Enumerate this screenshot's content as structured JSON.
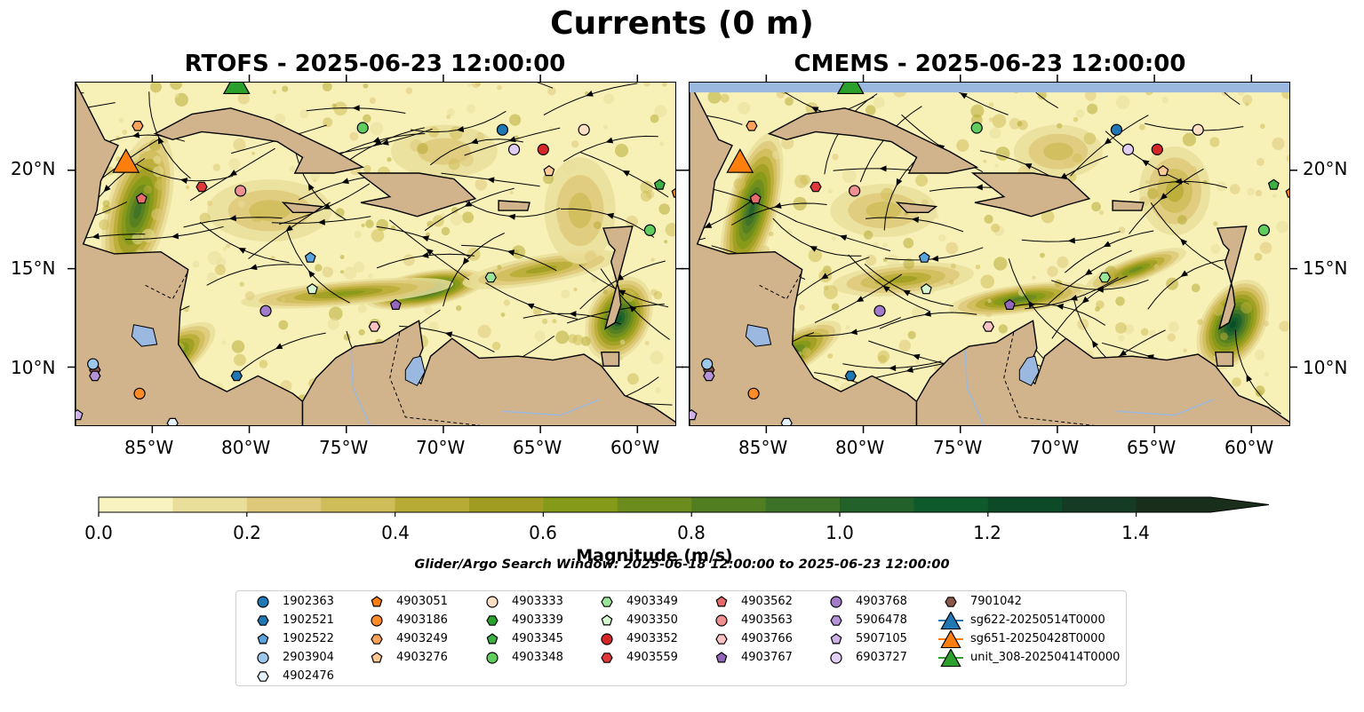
{
  "title": "Currents (0 m)",
  "panels": [
    {
      "id": "rtofs",
      "title": "RTOFS - 2025-06-23 12:00:00"
    },
    {
      "id": "cmems",
      "title": "CMEMS - 2025-06-23 12:00:00"
    }
  ],
  "map": {
    "lon_range": [
      -89,
      -58
    ],
    "lat_range": [
      7,
      24.5
    ],
    "lon_ticks": [
      "85°W",
      "80°W",
      "75°W",
      "70°W",
      "65°W",
      "60°W"
    ],
    "lat_ticks": [
      "20°N",
      "15°N",
      "10°N"
    ],
    "colors": {
      "land": "#d2b48c",
      "water": "#9bb9e0",
      "low": "#f7f1b8",
      "high": "#0d3b1c"
    }
  },
  "colorbar": {
    "label": "Magnitude (m/s)",
    "ticks": [
      "0.0",
      "0.2",
      "0.4",
      "0.6",
      "0.8",
      "1.0",
      "1.2",
      "1.4"
    ],
    "range": [
      0,
      1.5
    ],
    "extend": "max",
    "colors": [
      "#f8f3c0",
      "#eadf9a",
      "#dec97a",
      "#cfbd5a",
      "#b8ab35",
      "#a09c22",
      "#849a18",
      "#6c8c1e",
      "#527e22",
      "#3c7228",
      "#22622a",
      "#0f5a2c",
      "#0c4a28",
      "#163b24",
      "#1a2e1c"
    ]
  },
  "search_window": "Glider/Argo Search Window: 2025-06-18 12:00:00 to 2025-06-23 12:00:00",
  "legend": [
    {
      "label": "1902363",
      "marker": "circle",
      "color": "#1f77b4"
    },
    {
      "label": "1902521",
      "marker": "hexagon",
      "color": "#1f77b4"
    },
    {
      "label": "1902522",
      "marker": "pentagon",
      "color": "#5ba3dd"
    },
    {
      "label": "2903904",
      "marker": "circle",
      "color": "#9dc8ec"
    },
    {
      "label": "4902476",
      "marker": "hexagon",
      "color": "#e6f2fb"
    },
    {
      "label": "4903051",
      "marker": "pentagon",
      "color": "#ff7f0e"
    },
    {
      "label": "4903186",
      "marker": "circle",
      "color": "#ff8c26"
    },
    {
      "label": "4903249",
      "marker": "hexagon",
      "color": "#ffa35c"
    },
    {
      "label": "4903276",
      "marker": "pentagon",
      "color": "#ffc995"
    },
    {
      "label": "4903333",
      "marker": "circle",
      "color": "#ffe0c4"
    },
    {
      "label": "4903339",
      "marker": "hexagon",
      "color": "#2ca02c"
    },
    {
      "label": "4903345",
      "marker": "pentagon",
      "color": "#3cb044"
    },
    {
      "label": "4903348",
      "marker": "circle",
      "color": "#5fce5f"
    },
    {
      "label": "4903349",
      "marker": "hexagon",
      "color": "#9be59b"
    },
    {
      "label": "4903350",
      "marker": "pentagon",
      "color": "#d7f7d2"
    },
    {
      "label": "4903352",
      "marker": "circle",
      "color": "#d62728"
    },
    {
      "label": "4903559",
      "marker": "hexagon",
      "color": "#e0393b"
    },
    {
      "label": "4903562",
      "marker": "pentagon",
      "color": "#e86b6b"
    },
    {
      "label": "4903563",
      "marker": "circle",
      "color": "#f09090"
    },
    {
      "label": "4903766",
      "marker": "hexagon",
      "color": "#f9c3c3"
    },
    {
      "label": "4903767",
      "marker": "pentagon",
      "color": "#9467bd"
    },
    {
      "label": "4903768",
      "marker": "circle",
      "color": "#a27ccb"
    },
    {
      "label": "5906478",
      "marker": "hexagon",
      "color": "#b692d9"
    },
    {
      "label": "5907105",
      "marker": "pentagon",
      "color": "#cdb1e8"
    },
    {
      "label": "6903727",
      "marker": "circle",
      "color": "#e3cff5"
    },
    {
      "label": "7901042",
      "marker": "hexagon",
      "color": "#8c564b"
    },
    {
      "label": "sg622-20250514T0000",
      "marker": "triangle",
      "color": "#1f77b4"
    },
    {
      "label": "sg651-20250428T0000",
      "marker": "triangle",
      "color": "#ff7f0e"
    },
    {
      "label": "unit_308-20250414T0000",
      "marker": "triangle",
      "color": "#2ca02c"
    }
  ],
  "floats": [
    {
      "id": "1902363",
      "lon": -67.0,
      "lat": 22.1
    },
    {
      "id": "4903333",
      "lon": -62.8,
      "lat": 22.1
    },
    {
      "id": "4903348",
      "lon": -74.2,
      "lat": 22.2
    },
    {
      "id": "4903249",
      "lon": -85.8,
      "lat": 22.3
    },
    {
      "id": "6903727",
      "lon": -66.4,
      "lat": 21.1
    },
    {
      "id": "4903352",
      "lon": -64.9,
      "lat": 21.1
    },
    {
      "id": "4903276",
      "lon": -64.6,
      "lat": 20.0
    },
    {
      "id": "4903559",
      "lon": -82.5,
      "lat": 19.2
    },
    {
      "id": "4903563",
      "lon": -80.5,
      "lat": 19.0
    },
    {
      "id": "4903562",
      "lon": -85.6,
      "lat": 18.6
    },
    {
      "id": "4903345",
      "lon": -58.9,
      "lat": 19.3
    },
    {
      "id": "4903051",
      "lon": -58.0,
      "lat": 18.9
    },
    {
      "id": "4903348",
      "lon": -59.4,
      "lat": 17.0
    },
    {
      "id": "1902522",
      "lon": -76.9,
      "lat": 15.6
    },
    {
      "id": "4903350",
      "lon": -76.8,
      "lat": 14.0
    },
    {
      "id": "4903349",
      "lon": -67.6,
      "lat": 14.6
    },
    {
      "id": "4903767",
      "lon": -72.5,
      "lat": 13.2
    },
    {
      "id": "4903768",
      "lon": -79.2,
      "lat": 12.9
    },
    {
      "id": "4903766",
      "lon": -73.6,
      "lat": 12.1
    },
    {
      "id": "7901042",
      "lon": -88.0,
      "lat": 9.9
    },
    {
      "id": "2903904",
      "lon": -88.1,
      "lat": 10.2
    },
    {
      "id": "5906478",
      "lon": -88.0,
      "lat": 9.6
    },
    {
      "id": "1902521",
      "lon": -80.7,
      "lat": 9.6
    },
    {
      "id": "4903186",
      "lon": -85.7,
      "lat": 8.7
    },
    {
      "id": "5907105",
      "lon": -88.9,
      "lat": 7.6
    },
    {
      "id": "4902476",
      "lon": -84.0,
      "lat": 7.2
    }
  ],
  "gliders": [
    {
      "id": "sg651-20250428T0000",
      "lon": -86.4,
      "lat": 20.4
    },
    {
      "id": "unit_308-20250414T0000",
      "lon": -80.7,
      "lat": 24.4
    }
  ]
}
